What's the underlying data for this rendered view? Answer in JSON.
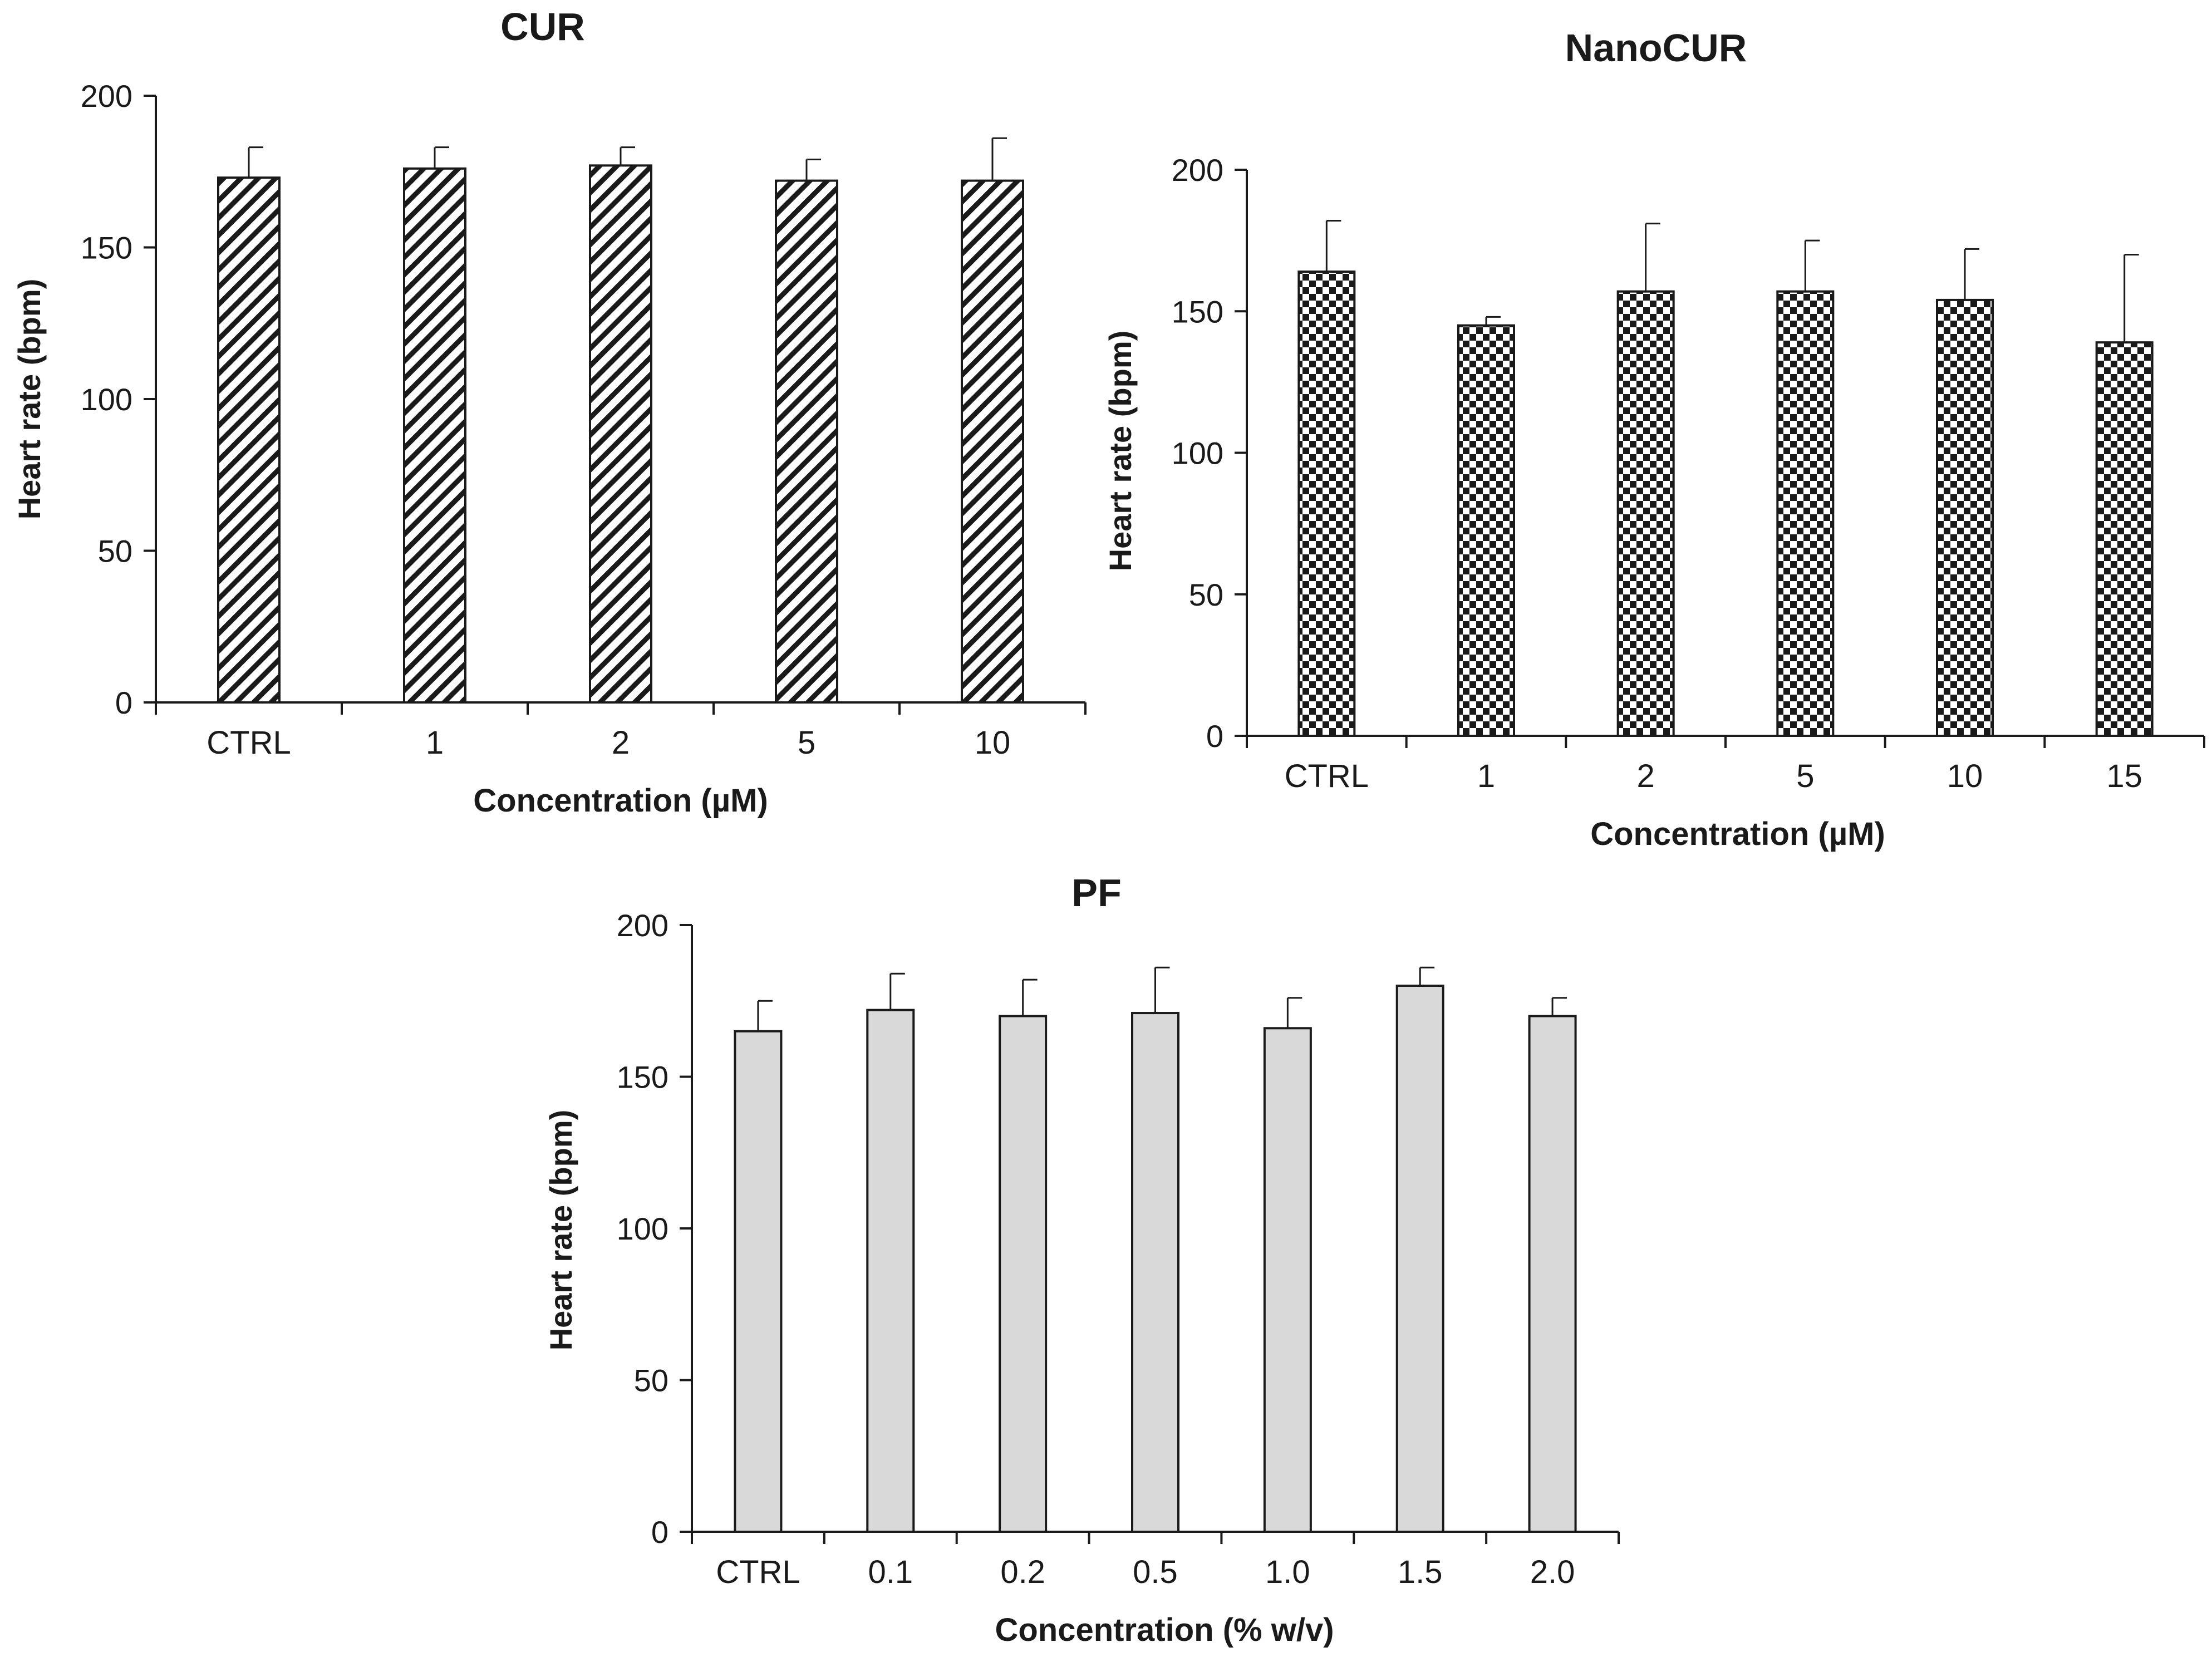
{
  "chart_data": [
    {
      "id": "cur",
      "type": "bar",
      "title": "CUR",
      "xlabel": "Concentration (µM)",
      "ylabel": "Heart rate (bpm)",
      "categories": [
        "CTRL",
        "1",
        "2",
        "5",
        "10"
      ],
      "values": [
        173,
        176,
        177,
        172,
        172
      ],
      "errors": [
        10,
        7,
        6,
        7,
        14
      ],
      "ylim": [
        0,
        200
      ],
      "yticks": [
        0,
        50,
        100,
        150,
        200
      ],
      "pattern": "diagonal-hatch",
      "grid": false
    },
    {
      "id": "nanocur",
      "type": "bar",
      "title": "NanoCUR",
      "xlabel": "Concentration (µM)",
      "ylabel": "Heart rate (bpm)",
      "categories": [
        "CTRL",
        "1",
        "2",
        "5",
        "10",
        "15"
      ],
      "values": [
        164,
        145,
        157,
        157,
        154,
        139
      ],
      "errors": [
        18,
        3,
        24,
        18,
        18,
        31
      ],
      "ylim": [
        0,
        200
      ],
      "yticks": [
        0,
        50,
        100,
        150,
        200
      ],
      "pattern": "checkerboard",
      "grid": false
    },
    {
      "id": "pf",
      "type": "bar",
      "title": "PF",
      "xlabel": "Concentration (% w/v)",
      "ylabel": "Heart rate (bpm)",
      "categories": [
        "CTRL",
        "0.1",
        "0.2",
        "0.5",
        "1.0",
        "1.5",
        "2.0"
      ],
      "values": [
        165,
        172,
        170,
        171,
        166,
        180,
        170
      ],
      "errors": [
        10,
        12,
        12,
        15,
        10,
        6,
        6
      ],
      "ylim": [
        0,
        200
      ],
      "yticks": [
        0,
        50,
        100,
        150,
        200
      ],
      "pattern": "solid-gray",
      "grid": false
    }
  ],
  "colors": {
    "axis": "#1a1a1a",
    "bar_stroke": "#1a1a1a",
    "pf_fill": "#d9d9d9",
    "hatch": "#1a1a1a",
    "background": "#ffffff"
  }
}
